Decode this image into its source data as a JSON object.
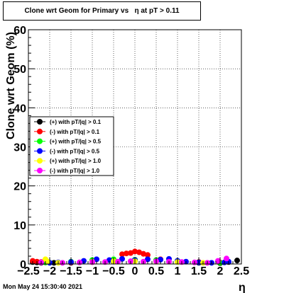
{
  "title": "Clone wrt Geom for Primary vs   η at pT > 0.11",
  "footer": "Mon May 24 15:30:40 2021",
  "colors": {
    "s0": "#000000",
    "s1": "#ff0000",
    "s2": "#00ff00",
    "s3": "#0000ff",
    "s4": "#ffff00",
    "s5": "#ff00ff"
  },
  "chart_data": {
    "type": "scatter",
    "title": "Clone wrt Geom for Primary vs   η at pT > 0.11",
    "xlabel": "η",
    "ylabel": "Clone wrt Geom (%)",
    "xlim": [
      -2.5,
      2.5
    ],
    "ylim": [
      0,
      60
    ],
    "x_ticks": [
      "−2.5",
      "−2",
      "−1.5",
      "−1",
      "−0.5",
      "0",
      "0.5",
      "1",
      "1.5",
      "2",
      "2.5"
    ],
    "y_ticks": [
      "0",
      "10",
      "20",
      "30",
      "40",
      "50",
      "60"
    ],
    "grid": true,
    "legend_position": "left",
    "series": [
      {
        "name": "(+) with pT/|q| > 0.1",
        "color_key": "s0",
        "x": [
          -2.4,
          -2.3,
          -2.2,
          -2.1,
          -1.9,
          -1.5,
          -1.0,
          -0.5,
          0.0,
          0.5,
          1.0,
          1.5,
          2.0,
          2.2,
          2.4
        ],
        "y": [
          0.5,
          0.4,
          0.3,
          0.4,
          0.3,
          0.3,
          0.5,
          0.6,
          0.8,
          0.7,
          0.6,
          0.3,
          0.2,
          0.5,
          0.9
        ]
      },
      {
        "name": "(-) with pT/|q| > 0.1",
        "color_key": "s1",
        "x": [
          -2.4,
          -2.3,
          -2.2,
          -2.1,
          -1.5,
          -1.0,
          -0.3,
          -0.2,
          -0.1,
          0.0,
          0.1,
          0.2,
          0.3,
          0.6,
          1.0,
          1.5,
          2.0
        ],
        "y": [
          0.8,
          0.6,
          0.5,
          0.4,
          0.4,
          0.5,
          2.5,
          2.7,
          2.8,
          3.2,
          3.0,
          2.6,
          2.3,
          1.2,
          0.7,
          0.5,
          0.4
        ]
      },
      {
        "name": "(+) with pT/|q| > 0.5",
        "color_key": "s2",
        "x": [
          -2.1,
          -2.0,
          -1.5,
          -1.0,
          -0.5,
          0.0,
          0.5,
          1.0,
          1.5,
          2.0
        ],
        "y": [
          0.4,
          0.3,
          0.6,
          1.0,
          1.2,
          1.1,
          1.0,
          0.8,
          0.4,
          0.3
        ]
      },
      {
        "name": "(-) with pT/|q| > 0.5",
        "color_key": "s3",
        "x": [
          -2.0,
          -1.8,
          -1.5,
          -1.2,
          -0.9,
          -0.6,
          -0.3,
          0.0,
          0.3,
          0.6,
          0.8,
          1.0,
          1.2,
          1.5,
          1.8,
          2.1,
          2.2
        ],
        "y": [
          0.3,
          0.4,
          0.5,
          0.8,
          1.2,
          1.0,
          1.3,
          1.0,
          1.2,
          1.1,
          1.3,
          0.8,
          0.6,
          0.4,
          0.3,
          0.4,
          0.6
        ]
      },
      {
        "name": "(+) with pT/|q| > 1.0",
        "color_key": "s4",
        "x": [
          -2.1,
          -2.05,
          -1.8,
          -1.0,
          -0.5,
          0.0,
          0.5,
          1.0,
          1.6
        ],
        "y": [
          1.2,
          0.6,
          0.3,
          0.6,
          0.7,
          0.7,
          0.6,
          0.5,
          0.3
        ]
      },
      {
        "name": "(-) with pT/|q| > 1.0",
        "color_key": "s5",
        "x": [
          -2.2,
          -1.7,
          -1.3,
          -1.0,
          -0.7,
          -0.4,
          -0.1,
          0.2,
          0.5,
          0.8,
          1.1,
          1.4,
          1.7,
          1.95,
          2.15
        ],
        "y": [
          0.4,
          0.3,
          0.4,
          0.5,
          0.5,
          0.6,
          0.7,
          0.6,
          0.7,
          0.6,
          0.5,
          0.4,
          0.3,
          0.8,
          1.4
        ]
      }
    ]
  }
}
